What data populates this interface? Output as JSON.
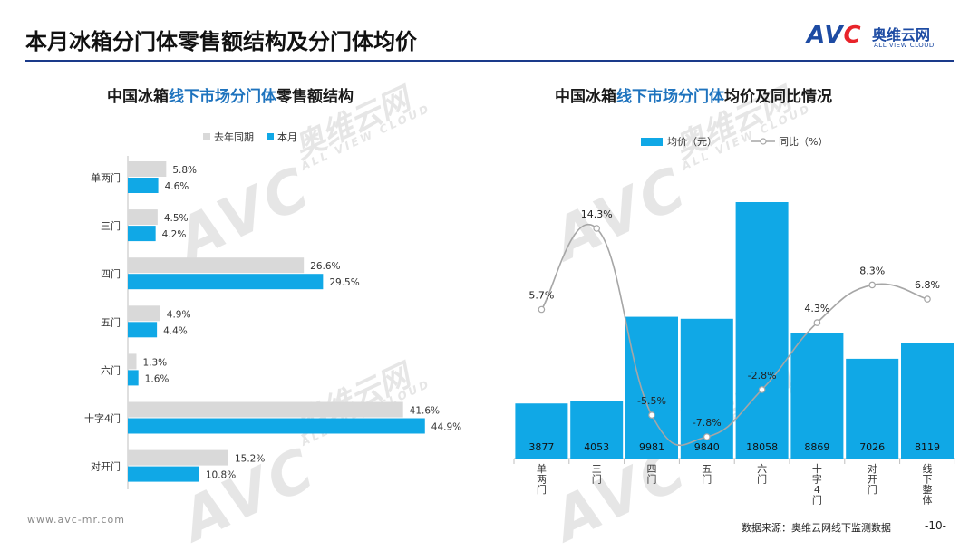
{
  "header": {
    "title": "本月冰箱分门体零售额结构及分门体均价",
    "logo_cn": "奥维云网",
    "logo_en": "ALL VIEW CLOUD"
  },
  "left_chart": {
    "title_pre": "中国冰箱",
    "title_hl": "线下市场分门体",
    "title_post": "零售额结构",
    "legend_prev": "去年同期",
    "legend_curr": "本月"
  },
  "right_chart": {
    "title_pre": "中国冰箱",
    "title_hl": "线下市场分门体",
    "title_post": "均价及同比情况",
    "legend_bar": "均价（元）",
    "legend_line": "同比（%）"
  },
  "watermark": {
    "logo": "AVC",
    "cn": "奥维云网",
    "en": "ALL VIEW CLOUD"
  },
  "footer": {
    "url": "www.avc-mr.com",
    "source": "数据来源：奥维云网线下监测数据",
    "page": "-10-"
  },
  "colors": {
    "blue": "#10a8e6",
    "gray": "#d9d9d9",
    "line": "#a6a6a6",
    "brand": "#1d4ba3",
    "title_highlight": "#1e73be"
  },
  "chart_data": [
    {
      "type": "bar",
      "orientation": "horizontal",
      "categories": [
        "单两门",
        "三门",
        "四门",
        "五门",
        "六门",
        "十字4门",
        "对开门"
      ],
      "series": [
        {
          "name": "去年同期",
          "values": [
            5.8,
            4.5,
            26.6,
            4.9,
            1.3,
            41.6,
            15.2
          ],
          "labels": [
            "5.8%",
            "4.5%",
            "26.6%",
            "4.9%",
            "1.3%",
            "41.6%",
            "15.2%"
          ],
          "color": "#d9d9d9"
        },
        {
          "name": "本月",
          "values": [
            4.6,
            4.2,
            29.5,
            4.4,
            1.6,
            44.9,
            10.8
          ],
          "labels": [
            "4.6%",
            "4.2%",
            "29.5%",
            "4.4%",
            "1.6%",
            "44.9%",
            "10.8%"
          ],
          "color": "#10a8e6"
        }
      ],
      "unit": "%",
      "xlim": [
        0,
        50
      ]
    },
    {
      "type": "bar",
      "categories": [
        "单两门",
        "三门",
        "四门",
        "五门",
        "六门",
        "十字4门",
        "对开门",
        "线下整体"
      ],
      "series": [
        {
          "name": "均价（元）",
          "type": "bar",
          "values": [
            3877,
            4053,
            9981,
            9840,
            18058,
            8869,
            7026,
            8119
          ],
          "labels": [
            "3877",
            "4053",
            "9981",
            "9840",
            "18058",
            "8869",
            "7026",
            "8119"
          ],
          "color": "#10a8e6",
          "ylim": [
            0,
            20500
          ]
        },
        {
          "name": "同比（%）",
          "type": "line",
          "smooth": true,
          "values": [
            5.7,
            14.3,
            -5.5,
            -7.8,
            -2.8,
            4.3,
            8.3,
            6.8
          ],
          "labels": [
            "5.7%",
            "14.3%",
            "-5.5%",
            "-7.8%",
            "-2.8%",
            "4.3%",
            "8.3%",
            "6.8%"
          ],
          "color": "#a6a6a6",
          "ylim": [
            -9,
            16
          ]
        }
      ]
    }
  ]
}
